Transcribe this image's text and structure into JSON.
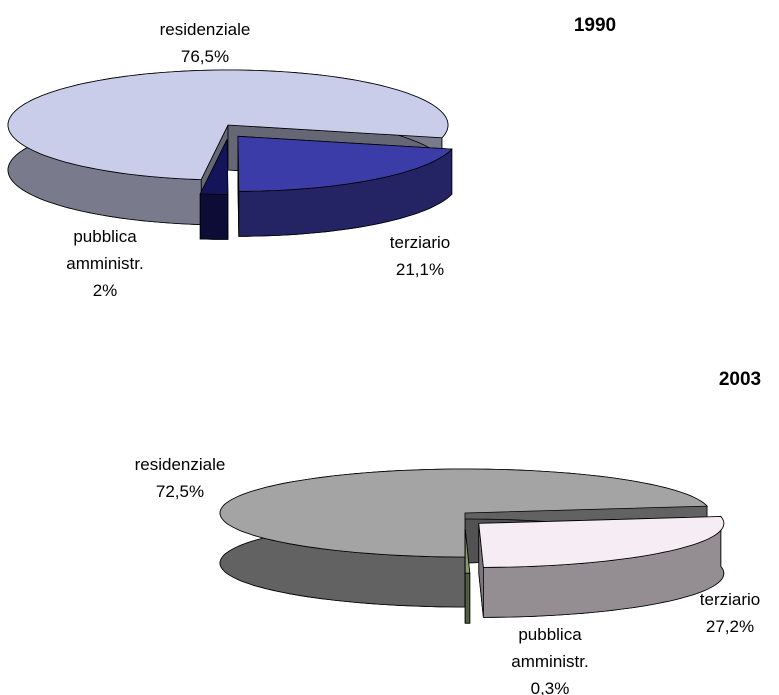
{
  "chart_data": [
    {
      "type": "pie3d",
      "title": "1990",
      "categories": [
        "residenziale",
        "terziario",
        "pubblica amministr."
      ],
      "values": [
        76.5,
        21.1,
        2
      ],
      "value_labels": [
        "76,5%",
        "21,1%",
        "2%"
      ],
      "colors": [
        "#c9cdea",
        "#3c3ca8",
        "#14145a"
      ]
    },
    {
      "type": "pie3d",
      "title": "2003",
      "categories": [
        "residenziale",
        "terziario",
        "pubblica amministr."
      ],
      "values": [
        72.5,
        27.2,
        0.3
      ],
      "value_labels": [
        "72,5%",
        "27,2%",
        "0,3%"
      ],
      "colors": [
        "#a4a4a4",
        "#f6ecf3",
        "#8c9a72"
      ]
    }
  ]
}
